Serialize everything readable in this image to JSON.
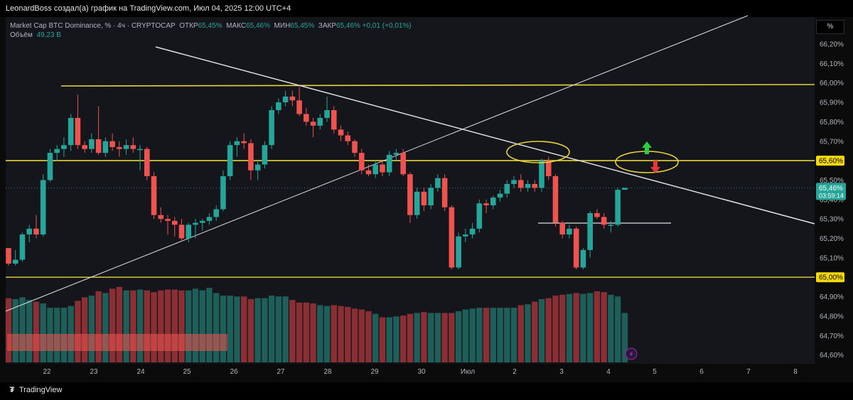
{
  "header": {
    "attribution": "LeonardBoss создал(а) график на TradingView.com, Июл 04, 2025 12:00 UTC+4"
  },
  "legend": {
    "symbol": "Market Cap BTC Dominance, % · 4ч · CRYPTOCAP",
    "open_label": "ОТКР",
    "open_value": "65,45%",
    "high_label": "МАКС",
    "high_value": "65,46%",
    "low_label": "МИН",
    "low_value": "65,45%",
    "close_label": "ЗАКР",
    "close_value": "65,46%",
    "change": "+0,01 (+0,01%)",
    "volume_label": "Объём",
    "volume_value": "49,23 B"
  },
  "toolbar": {
    "percent_button": "%"
  },
  "footer": {
    "brand": "TradingView",
    "brand_icon": "tradingview-logo-icon"
  },
  "colors": {
    "up": "#26a69a",
    "down": "#ef5350",
    "level_line": "#e6d43a",
    "trend_line": "#e0e0e0",
    "panel_bg": "#15151c"
  },
  "chart_data": {
    "type": "candlestick",
    "timeframe": "4h",
    "y_unit": "%",
    "ylim": [
      64.58,
      66.25
    ],
    "y_ticks": [
      "66,20%",
      "66,10%",
      "66,00%",
      "65,90%",
      "65,80%",
      "65,70%",
      "65,50%",
      "65,40%",
      "65,30%",
      "65,20%",
      "65,10%",
      "64,90%",
      "64,80%",
      "64,70%",
      "64,60%"
    ],
    "y_tick_values": [
      66.2,
      66.1,
      66.0,
      65.9,
      65.8,
      65.7,
      65.5,
      65.4,
      65.3,
      65.2,
      65.1,
      64.9,
      64.8,
      64.7,
      64.6
    ],
    "x_ticks": [
      "22",
      "23",
      "24",
      "25",
      "26",
      "27",
      "28",
      "29",
      "30",
      "Июл",
      "2",
      "3",
      "4",
      "5",
      "6",
      "7",
      "8"
    ],
    "price_labels": [
      {
        "text": "65,60%",
        "value": 65.6,
        "style": "yellow"
      },
      {
        "text": "65,00%",
        "value": 65.0,
        "style": "yellow"
      }
    ],
    "last_price": {
      "text": "65,46%",
      "countdown": "03:59:14",
      "value": 65.46
    },
    "candles": [
      {
        "o": 65.15,
        "h": 65.15,
        "l": 65.06,
        "c": 65.07
      },
      {
        "o": 65.07,
        "h": 65.14,
        "l": 65.06,
        "c": 65.09
      },
      {
        "o": 65.09,
        "h": 65.23,
        "l": 65.08,
        "c": 65.22
      },
      {
        "o": 65.22,
        "h": 65.27,
        "l": 65.18,
        "c": 65.25
      },
      {
        "o": 65.25,
        "h": 65.32,
        "l": 65.2,
        "c": 65.22
      },
      {
        "o": 65.22,
        "h": 65.53,
        "l": 65.21,
        "c": 65.5
      },
      {
        "o": 65.5,
        "h": 65.66,
        "l": 65.49,
        "c": 65.64
      },
      {
        "o": 65.64,
        "h": 65.68,
        "l": 65.6,
        "c": 65.66
      },
      {
        "o": 65.66,
        "h": 65.72,
        "l": 65.62,
        "c": 65.68
      },
      {
        "o": 65.68,
        "h": 65.84,
        "l": 65.65,
        "c": 65.82
      },
      {
        "o": 65.82,
        "h": 65.94,
        "l": 65.66,
        "c": 65.68
      },
      {
        "o": 65.68,
        "h": 65.7,
        "l": 65.64,
        "c": 65.66
      },
      {
        "o": 65.66,
        "h": 65.74,
        "l": 65.64,
        "c": 65.71
      },
      {
        "o": 65.71,
        "h": 65.88,
        "l": 65.63,
        "c": 65.64
      },
      {
        "o": 65.64,
        "h": 65.72,
        "l": 65.62,
        "c": 65.7
      },
      {
        "o": 65.7,
        "h": 65.74,
        "l": 65.65,
        "c": 65.67
      },
      {
        "o": 65.67,
        "h": 65.7,
        "l": 65.62,
        "c": 65.66
      },
      {
        "o": 65.66,
        "h": 65.71,
        "l": 65.63,
        "c": 65.68
      },
      {
        "o": 65.68,
        "h": 65.72,
        "l": 65.64,
        "c": 65.66
      },
      {
        "o": 65.66,
        "h": 65.68,
        "l": 65.55,
        "c": 65.66
      },
      {
        "o": 65.66,
        "h": 65.67,
        "l": 65.5,
        "c": 65.52
      },
      {
        "o": 65.52,
        "h": 65.54,
        "l": 65.3,
        "c": 65.32
      },
      {
        "o": 65.32,
        "h": 65.36,
        "l": 65.28,
        "c": 65.3
      },
      {
        "o": 65.3,
        "h": 65.32,
        "l": 65.22,
        "c": 65.29
      },
      {
        "o": 65.29,
        "h": 65.31,
        "l": 65.21,
        "c": 65.27
      },
      {
        "o": 65.27,
        "h": 65.3,
        "l": 65.19,
        "c": 65.2
      },
      {
        "o": 65.2,
        "h": 65.28,
        "l": 65.18,
        "c": 65.27
      },
      {
        "o": 65.27,
        "h": 65.3,
        "l": 65.2,
        "c": 65.28
      },
      {
        "o": 65.28,
        "h": 65.3,
        "l": 65.24,
        "c": 65.29
      },
      {
        "o": 65.29,
        "h": 65.33,
        "l": 65.27,
        "c": 65.31
      },
      {
        "o": 65.31,
        "h": 65.37,
        "l": 65.29,
        "c": 65.35
      },
      {
        "o": 65.35,
        "h": 65.55,
        "l": 65.34,
        "c": 65.52
      },
      {
        "o": 65.52,
        "h": 65.7,
        "l": 65.5,
        "c": 65.68
      },
      {
        "o": 65.68,
        "h": 65.72,
        "l": 65.62,
        "c": 65.7
      },
      {
        "o": 65.7,
        "h": 65.74,
        "l": 65.66,
        "c": 65.69
      },
      {
        "o": 65.69,
        "h": 65.71,
        "l": 65.5,
        "c": 65.55
      },
      {
        "o": 65.55,
        "h": 65.6,
        "l": 65.5,
        "c": 65.58
      },
      {
        "o": 65.58,
        "h": 65.7,
        "l": 65.56,
        "c": 65.68
      },
      {
        "o": 65.68,
        "h": 65.88,
        "l": 65.66,
        "c": 65.86
      },
      {
        "o": 65.86,
        "h": 65.92,
        "l": 65.84,
        "c": 65.9
      },
      {
        "o": 65.9,
        "h": 65.96,
        "l": 65.88,
        "c": 65.93
      },
      {
        "o": 65.93,
        "h": 65.96,
        "l": 65.88,
        "c": 65.91
      },
      {
        "o": 65.91,
        "h": 65.98,
        "l": 65.83,
        "c": 65.84
      },
      {
        "o": 65.84,
        "h": 65.87,
        "l": 65.78,
        "c": 65.8
      },
      {
        "o": 65.8,
        "h": 65.82,
        "l": 65.72,
        "c": 65.78
      },
      {
        "o": 65.78,
        "h": 65.84,
        "l": 65.76,
        "c": 65.82
      },
      {
        "o": 65.82,
        "h": 65.93,
        "l": 65.8,
        "c": 65.86
      },
      {
        "o": 65.86,
        "h": 65.88,
        "l": 65.74,
        "c": 65.76
      },
      {
        "o": 65.76,
        "h": 65.78,
        "l": 65.7,
        "c": 65.73
      },
      {
        "o": 65.73,
        "h": 65.75,
        "l": 65.68,
        "c": 65.7
      },
      {
        "o": 65.7,
        "h": 65.71,
        "l": 65.62,
        "c": 65.64
      },
      {
        "o": 65.64,
        "h": 65.66,
        "l": 65.53,
        "c": 65.55
      },
      {
        "o": 65.55,
        "h": 65.58,
        "l": 65.52,
        "c": 65.53
      },
      {
        "o": 65.53,
        "h": 65.6,
        "l": 65.51,
        "c": 65.58
      },
      {
        "o": 65.58,
        "h": 65.6,
        "l": 65.52,
        "c": 65.54
      },
      {
        "o": 65.54,
        "h": 65.65,
        "l": 65.52,
        "c": 65.63
      },
      {
        "o": 65.63,
        "h": 65.66,
        "l": 65.6,
        "c": 65.64
      },
      {
        "o": 65.64,
        "h": 65.66,
        "l": 65.52,
        "c": 65.53
      },
      {
        "o": 65.53,
        "h": 65.54,
        "l": 65.28,
        "c": 65.32
      },
      {
        "o": 65.32,
        "h": 65.46,
        "l": 65.3,
        "c": 65.44
      },
      {
        "o": 65.44,
        "h": 65.46,
        "l": 65.34,
        "c": 65.37
      },
      {
        "o": 65.37,
        "h": 65.48,
        "l": 65.35,
        "c": 65.46
      },
      {
        "o": 65.46,
        "h": 65.53,
        "l": 65.44,
        "c": 65.51
      },
      {
        "o": 65.51,
        "h": 65.53,
        "l": 65.34,
        "c": 65.36
      },
      {
        "o": 65.36,
        "h": 65.37,
        "l": 65.04,
        "c": 65.05
      },
      {
        "o": 65.05,
        "h": 65.23,
        "l": 65.04,
        "c": 65.21
      },
      {
        "o": 65.21,
        "h": 65.25,
        "l": 65.18,
        "c": 65.22
      },
      {
        "o": 65.22,
        "h": 65.28,
        "l": 65.2,
        "c": 65.25
      },
      {
        "o": 65.25,
        "h": 65.4,
        "l": 65.23,
        "c": 65.38
      },
      {
        "o": 65.38,
        "h": 65.4,
        "l": 65.33,
        "c": 65.37
      },
      {
        "o": 65.37,
        "h": 65.42,
        "l": 65.35,
        "c": 65.41
      },
      {
        "o": 65.41,
        "h": 65.45,
        "l": 65.39,
        "c": 65.43
      },
      {
        "o": 65.43,
        "h": 65.5,
        "l": 65.41,
        "c": 65.48
      },
      {
        "o": 65.48,
        "h": 65.52,
        "l": 65.46,
        "c": 65.5
      },
      {
        "o": 65.5,
        "h": 65.53,
        "l": 65.44,
        "c": 65.46
      },
      {
        "o": 65.46,
        "h": 65.5,
        "l": 65.44,
        "c": 65.48
      },
      {
        "o": 65.48,
        "h": 65.5,
        "l": 65.44,
        "c": 65.46
      },
      {
        "o": 65.46,
        "h": 65.61,
        "l": 65.44,
        "c": 65.6
      },
      {
        "o": 65.6,
        "h": 65.62,
        "l": 65.5,
        "c": 65.52
      },
      {
        "o": 65.52,
        "h": 65.53,
        "l": 65.26,
        "c": 65.28
      },
      {
        "o": 65.28,
        "h": 65.29,
        "l": 65.2,
        "c": 65.22
      },
      {
        "o": 65.22,
        "h": 65.27,
        "l": 65.2,
        "c": 65.25
      },
      {
        "o": 65.25,
        "h": 65.26,
        "l": 65.04,
        "c": 65.05
      },
      {
        "o": 65.05,
        "h": 65.15,
        "l": 65.04,
        "c": 65.14
      },
      {
        "o": 65.14,
        "h": 65.34,
        "l": 65.1,
        "c": 65.33
      },
      {
        "o": 65.33,
        "h": 65.35,
        "l": 65.3,
        "c": 65.31
      },
      {
        "o": 65.31,
        "h": 65.33,
        "l": 65.25,
        "c": 65.27
      },
      {
        "o": 65.27,
        "h": 65.29,
        "l": 65.23,
        "c": 65.27
      },
      {
        "o": 65.27,
        "h": 65.46,
        "l": 65.26,
        "c": 65.45
      },
      {
        "o": 65.45,
        "h": 65.46,
        "l": 65.45,
        "c": 65.46
      }
    ],
    "volume": [
      0.74,
      0.73,
      0.75,
      0.72,
      0.7,
      0.68,
      0.63,
      0.63,
      0.63,
      0.65,
      0.71,
      0.75,
      0.77,
      0.82,
      0.8,
      0.85,
      0.87,
      0.83,
      0.83,
      0.84,
      0.83,
      0.81,
      0.83,
      0.84,
      0.84,
      0.83,
      0.83,
      0.85,
      0.83,
      0.86,
      0.8,
      0.77,
      0.77,
      0.76,
      0.76,
      0.73,
      0.74,
      0.74,
      0.77,
      0.76,
      0.76,
      0.72,
      0.69,
      0.69,
      0.68,
      0.66,
      0.65,
      0.66,
      0.65,
      0.64,
      0.62,
      0.61,
      0.59,
      0.56,
      0.52,
      0.52,
      0.53,
      0.54,
      0.56,
      0.57,
      0.58,
      0.57,
      0.57,
      0.57,
      0.57,
      0.59,
      0.61,
      0.62,
      0.63,
      0.63,
      0.63,
      0.63,
      0.63,
      0.63,
      0.66,
      0.67,
      0.7,
      0.73,
      0.74,
      0.77,
      0.78,
      0.79,
      0.8,
      0.79,
      0.8,
      0.82,
      0.81,
      0.78,
      0.76,
      0.57
    ]
  }
}
